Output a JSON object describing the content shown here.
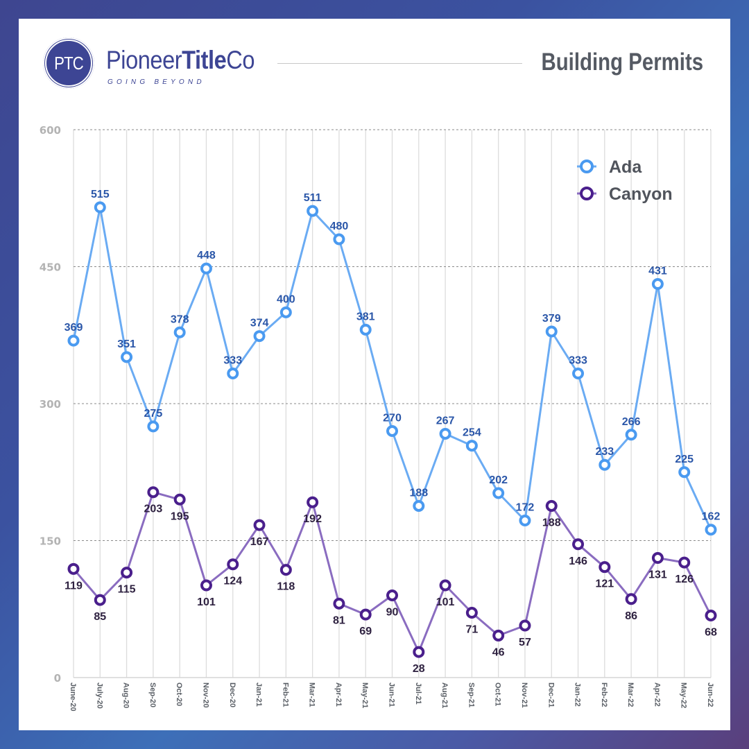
{
  "brand": {
    "mark": "PTC",
    "name_regular": "Pioneer",
    "name_bold": "Title",
    "name_suffix": "Co",
    "tagline": "GOING BEYOND"
  },
  "header": {
    "title": "Building Permits"
  },
  "colors": {
    "ada": "#4a9af0",
    "ada_line": "#6aabf3",
    "canyon": "#4a1f8c",
    "canyon_line": "#8a6cc0",
    "brand": "#3d4594"
  },
  "chart_data": {
    "type": "line",
    "title": "Building Permits",
    "xlabel": "",
    "ylabel": "",
    "ylim": [
      0,
      600
    ],
    "yticks": [
      0,
      150,
      300,
      450,
      600
    ],
    "grid": true,
    "legend_position": "top-right",
    "categories": [
      "June-20",
      "July-20",
      "Aug-20",
      "Sep-20",
      "Oct-20",
      "Nov-20",
      "Dec-20",
      "Jan-21",
      "Feb-21",
      "Mar-21",
      "Apr-21",
      "May-21",
      "Jun-21",
      "Jul-21",
      "Aug-21",
      "Sep-21",
      "Oct-21",
      "Nov-21",
      "Dec-21",
      "Jan-22",
      "Feb-22",
      "Mar-22",
      "Apr-22",
      "May-22",
      "Jun-22"
    ],
    "series": [
      {
        "name": "Ada",
        "values": [
          369,
          515,
          351,
          275,
          378,
          448,
          333,
          374,
          400,
          511,
          480,
          381,
          270,
          188,
          267,
          254,
          202,
          172,
          379,
          333,
          233,
          266,
          431,
          225,
          162
        ]
      },
      {
        "name": "Canyon",
        "values": [
          119,
          85,
          115,
          203,
          195,
          101,
          124,
          167,
          118,
          192,
          81,
          69,
          90,
          28,
          101,
          71,
          46,
          57,
          188,
          146,
          121,
          86,
          131,
          126,
          68
        ]
      }
    ]
  }
}
